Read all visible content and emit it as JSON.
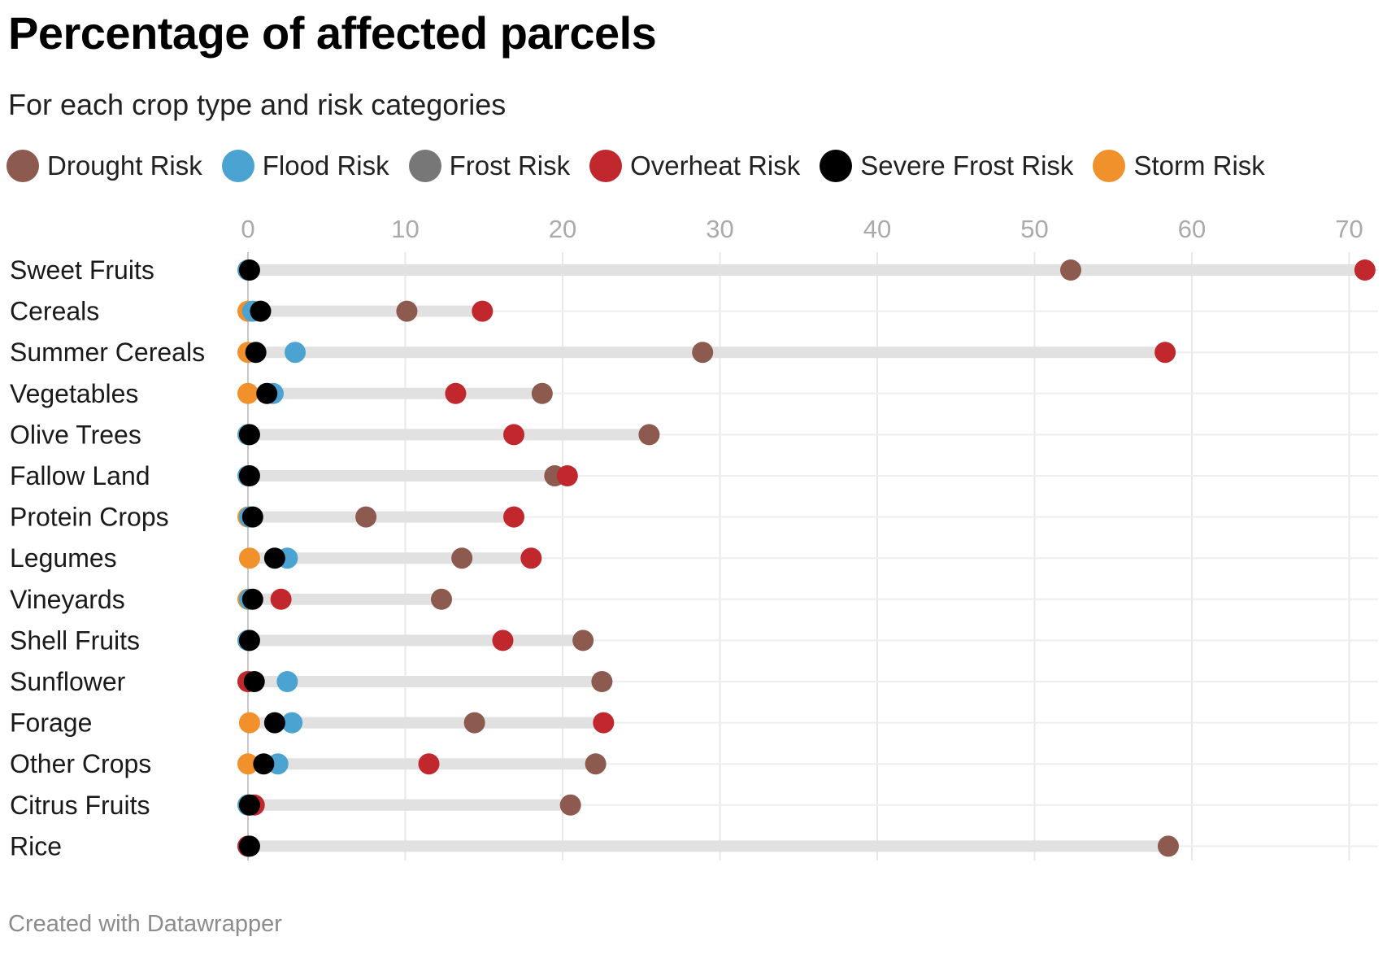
{
  "title": "Percentage of affected parcels",
  "subtitle": "For each crop type and risk categories",
  "footer": "Created with Datawrapper",
  "colors": {
    "drought": "#8c5a4f",
    "flood": "#4ba3d1",
    "frost": "#777777",
    "overheat": "#c1282d",
    "severe_frost": "#000000",
    "storm": "#f0912b",
    "range_bar": "#e1e1e1",
    "grid": "#e8e8e8",
    "tick_text": "#aaaaaa"
  },
  "chart_data": {
    "type": "dot-range",
    "title": "Percentage of affected parcels",
    "subtitle": "For each crop type and risk categories",
    "xlim": [
      0,
      71.5
    ],
    "xticks": [
      0,
      10,
      20,
      30,
      40,
      50,
      60,
      70
    ],
    "grid": true,
    "legend_position": "top-left",
    "categories": [
      "Sweet Fruits",
      "Cereals",
      "Summer Cereals",
      "Vegetables",
      "Olive Trees",
      "Fallow Land",
      "Protein Crops",
      "Legumes",
      "Vineyards",
      "Shell Fruits",
      "Sunflower",
      "Forage",
      "Other Crops",
      "Citrus Fruits",
      "Rice"
    ],
    "series": [
      {
        "name": "Drought Risk",
        "color": "#8c5a4f",
        "values": [
          52.3,
          10.1,
          28.9,
          18.7,
          25.5,
          19.5,
          7.5,
          13.6,
          12.3,
          21.3,
          22.5,
          14.4,
          22.1,
          20.5,
          58.5
        ]
      },
      {
        "name": "Flood Risk",
        "color": "#4ba3d1",
        "values": [
          0,
          0.3,
          3.0,
          1.6,
          0,
          0,
          0.1,
          2.5,
          0.1,
          0,
          2.5,
          2.8,
          1.9,
          0,
          0
        ]
      },
      {
        "name": "Frost Risk",
        "color": "#777777",
        "values": [
          0,
          0,
          0,
          0,
          0,
          0,
          0,
          0,
          0,
          0,
          0,
          0,
          0,
          0,
          0
        ]
      },
      {
        "name": "Overheat Risk",
        "color": "#c1282d",
        "values": [
          71.0,
          14.9,
          58.3,
          13.2,
          16.9,
          20.3,
          16.9,
          18.0,
          2.1,
          16.2,
          0,
          22.6,
          11.5,
          0.4,
          0
        ]
      },
      {
        "name": "Severe Frost Risk",
        "color": "#000000",
        "values": [
          0.1,
          0.8,
          0.5,
          1.2,
          0.1,
          0.1,
          0.3,
          1.7,
          0.3,
          0.1,
          0.4,
          1.7,
          1.0,
          0.1,
          0.1
        ]
      },
      {
        "name": "Storm Risk",
        "color": "#f0912b",
        "values": [
          0,
          0,
          0,
          0,
          0,
          0,
          0,
          0.1,
          0,
          0,
          0,
          0.1,
          0,
          0,
          0
        ]
      }
    ]
  }
}
